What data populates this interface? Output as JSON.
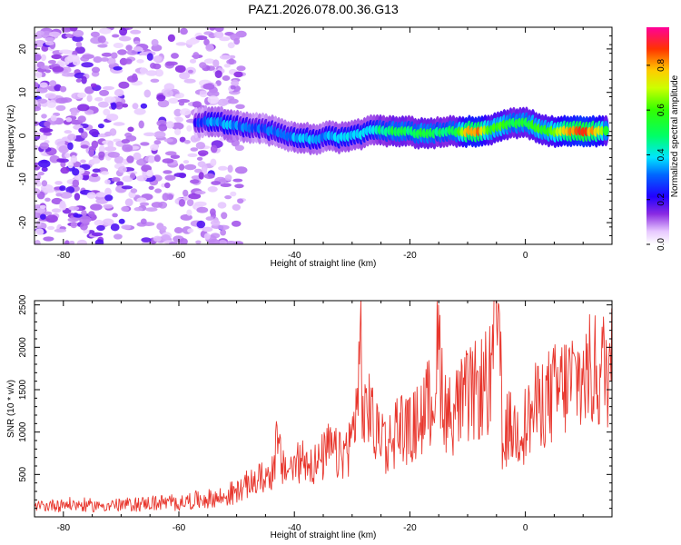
{
  "title": "PAZ1.2026.078.00.36.G13",
  "chart_data": [
    {
      "type": "heatmap",
      "title": "PAZ1.2026.078.00.36.G13",
      "xlabel": "Height of straight line (km)",
      "ylabel": "Frequency (Hz)",
      "xlim": [
        -85,
        15
      ],
      "ylim": [
        -25,
        25
      ],
      "x_ticks": [
        -80,
        -60,
        -40,
        -20,
        0
      ],
      "x_tick_labels": [
        "-80",
        "-60",
        "-40",
        "-20",
        "0"
      ],
      "y_ticks": [
        -20,
        -10,
        0,
        10,
        20
      ],
      "y_tick_labels": [
        "-20",
        "-10",
        "0",
        "10",
        "20"
      ],
      "ridge": {
        "x": [
          -57,
          -54,
          -51,
          -48,
          -45,
          -42,
          -40,
          -38,
          -36,
          -34,
          -32,
          -30,
          -28,
          -26,
          -24,
          -22,
          -20,
          -18,
          -16,
          -14,
          -12,
          -10,
          -8,
          -6,
          -4,
          -2,
          0,
          2,
          4,
          6,
          8,
          10,
          12,
          14
        ],
        "y": [
          3,
          3.5,
          2.5,
          2,
          1.5,
          0.5,
          -0.5,
          -0.5,
          -1,
          0,
          -0.5,
          0,
          0.5,
          1.5,
          1,
          1,
          1,
          0.5,
          0.5,
          1,
          1,
          1,
          1,
          1.5,
          2.5,
          3,
          3,
          2,
          1,
          1,
          1,
          1,
          1,
          1
        ],
        "amplitude": [
          0.25,
          0.35,
          0.35,
          0.3,
          0.3,
          0.35,
          0.35,
          0.4,
          0.35,
          0.35,
          0.4,
          0.4,
          0.4,
          0.45,
          0.5,
          0.55,
          0.5,
          0.55,
          0.5,
          0.5,
          0.55,
          0.8,
          0.85,
          0.6,
          0.6,
          0.55,
          0.55,
          0.6,
          0.6,
          0.7,
          0.85,
          0.9,
          0.8,
          0.6
        ]
      },
      "noise_region_x": [
        -85,
        -55
      ],
      "colorbar": {
        "label": "Normalized spectral amplitude",
        "range": [
          0.0,
          0.97
        ],
        "ticks": [
          0.0,
          0.2,
          0.4,
          0.6,
          0.8
        ],
        "tick_labels": [
          "0.0",
          "0.2",
          "0.4",
          "0.6",
          "0.8"
        ]
      }
    },
    {
      "type": "line",
      "xlabel": "Height of straight line (km)",
      "ylabel": "SNR (10 * v/v)",
      "xlim": [
        -85,
        15
      ],
      "ylim": [
        0,
        2550
      ],
      "x_ticks": [
        -80,
        -60,
        -40,
        -20,
        0
      ],
      "x_tick_labels": [
        "-80",
        "-60",
        "-40",
        "-20",
        "0"
      ],
      "y_ticks": [
        500,
        1000,
        1500,
        2000,
        2500
      ],
      "y_tick_labels": [
        "500",
        "1000",
        "1500",
        "2000",
        "2500"
      ],
      "series": [
        {
          "name": "SNR",
          "color": "#e8372e",
          "x": [
            -85,
            -80,
            -75,
            -70,
            -65,
            -60,
            -56,
            -52,
            -50,
            -48,
            -46,
            -44,
            -43,
            -42,
            -40,
            -38,
            -36,
            -34,
            -32,
            -30,
            -29,
            -28.5,
            -28,
            -27,
            -26,
            -25,
            -24,
            -22,
            -20,
            -18,
            -16,
            -15,
            -14,
            -13,
            -12,
            -10,
            -8,
            -6,
            -5,
            -4.5,
            -4,
            -3,
            -2,
            0,
            2,
            4,
            6,
            8,
            10,
            12,
            14,
            15
          ],
          "y": [
            120,
            150,
            130,
            140,
            160,
            170,
            200,
            230,
            300,
            380,
            450,
            500,
            870,
            550,
            600,
            700,
            600,
            800,
            700,
            900,
            1500,
            2100,
            1000,
            1400,
            900,
            1100,
            800,
            1100,
            1000,
            1200,
            1400,
            2000,
            1300,
            1200,
            1300,
            1400,
            1500,
            1600,
            2200,
            2550,
            700,
            1100,
            1000,
            1100,
            1300,
            1400,
            1500,
            1600,
            1650,
            1700,
            1750,
            1800
          ]
        }
      ]
    }
  ]
}
